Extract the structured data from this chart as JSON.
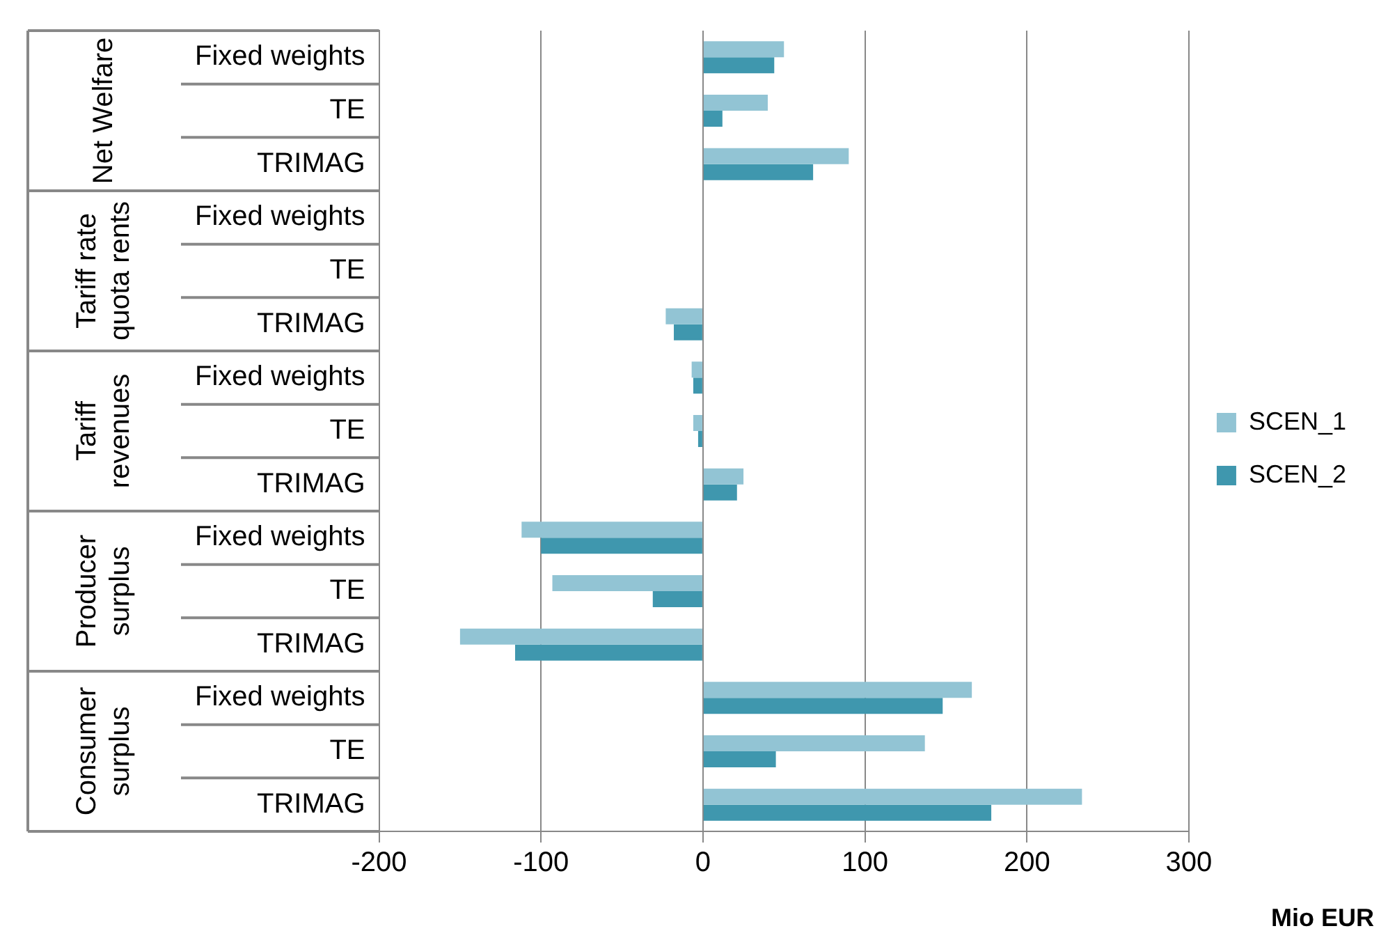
{
  "chart_data": {
    "type": "bar",
    "orientation": "horizontal",
    "xlabel": "Mio EUR",
    "categories": [
      "Fixed weights",
      "TE",
      "TRIMAG",
      "Fixed weights",
      "TE",
      "TRIMAG",
      "Fixed weights",
      "TE",
      "TRIMAG",
      "Fixed weights",
      "TE",
      "TRIMAG",
      "Fixed weights",
      "TE",
      "TRIMAG"
    ],
    "series": [
      {
        "name": "SCEN_1",
        "color": "#92c4d4",
        "values": [
          50,
          40,
          90,
          0,
          0,
          -23,
          -7,
          -6,
          25,
          -112,
          -93,
          -150,
          166,
          137,
          234
        ]
      },
      {
        "name": "SCEN_2",
        "color": "#3f97ae",
        "values": [
          44,
          12,
          68,
          0,
          0,
          -18,
          -6,
          -3,
          21,
          -100,
          -31,
          -116,
          148,
          45,
          178
        ]
      }
    ],
    "annotations": [
      "Net Welfare",
      "Tariff rate quota rents",
      "Tariff revenues",
      "Producer surplus",
      "Consumer surplus"
    ],
    "xlim": [
      -200,
      300
    ],
    "xticks": [
      -200,
      -100,
      0,
      100,
      200,
      300
    ],
    "grid": "x",
    "legend": "right"
  }
}
